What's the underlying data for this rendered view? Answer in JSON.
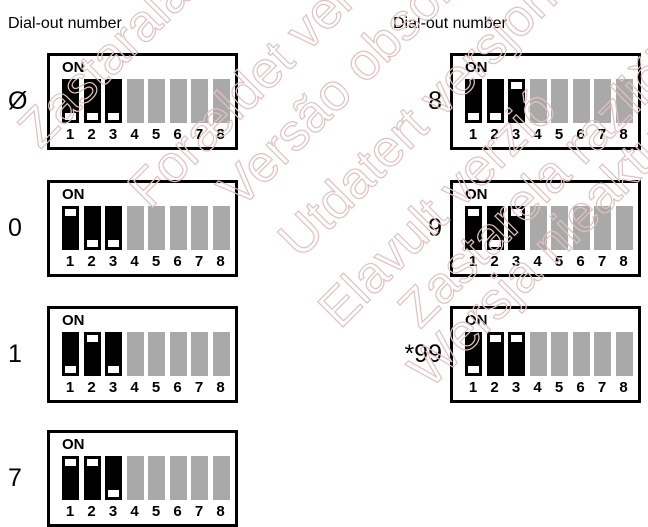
{
  "headings": {
    "left": "Dial-out number",
    "right": "Dial-out number"
  },
  "on_label": "ON",
  "switch_numbers": [
    "1",
    "2",
    "3",
    "4",
    "5",
    "6",
    "7",
    "8"
  ],
  "colors": {
    "active": "#000000",
    "inactive": "#a9a9a9",
    "frame": "#000000"
  },
  "left_column": [
    {
      "label": "Ø",
      "switches": [
        "on",
        "on",
        "on"
      ]
    },
    {
      "label": "0",
      "switches": [
        "off",
        "on",
        "on"
      ]
    },
    {
      "label": "1",
      "switches": [
        "on",
        "off",
        "on"
      ]
    },
    {
      "label": "7",
      "switches": [
        "off",
        "off",
        "on"
      ]
    }
  ],
  "right_column": [
    {
      "label": "8",
      "switches": [
        "on",
        "on",
        "off"
      ]
    },
    {
      "label": "9",
      "switches": [
        "off",
        "on",
        "off"
      ]
    },
    {
      "label": "*99",
      "switches": [
        "on",
        "off",
        "off"
      ]
    }
  ],
  "watermark": [
    "Zastaralá verze",
    "Forældet version",
    "Versão obsoleta",
    "Utdatert versjon",
    "Elavult verzió",
    "Zastarela različica",
    "Wersja nieaktualna"
  ]
}
